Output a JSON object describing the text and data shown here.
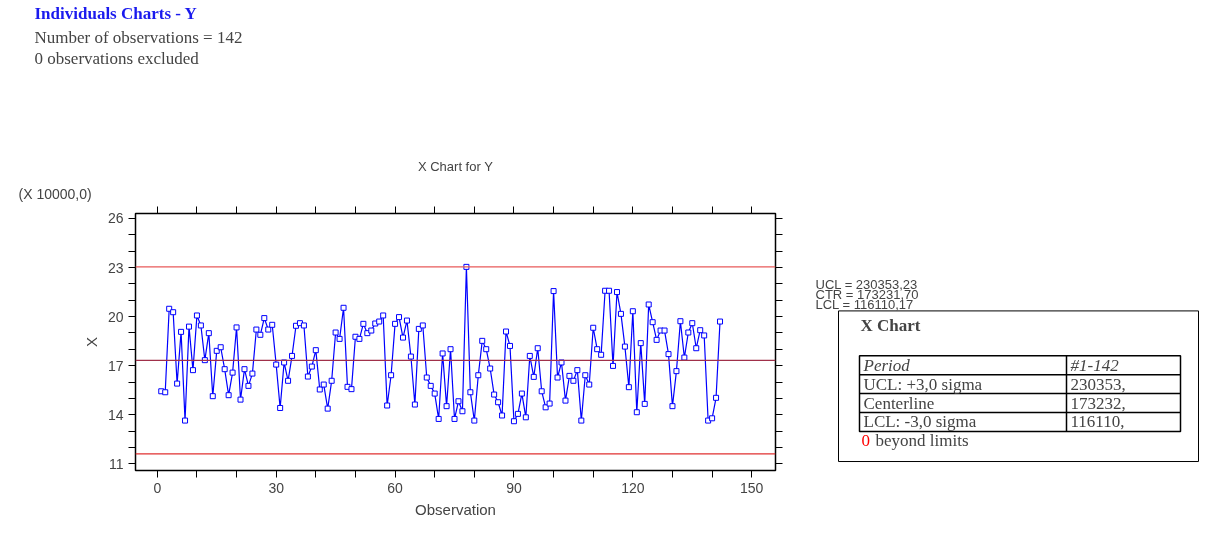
{
  "chart_data": [
    {
      "type": "other",
      "title": "Individuals Charts - Y",
      "annotations": [
        "Number of observations = 142",
        "0 observations excluded"
      ]
    },
    {
      "type": "line",
      "title": "X Chart for Y",
      "xlabel": "Observation",
      "ylabel": "X",
      "annotations": [
        "(X 10000,0)",
        "UCL = 230353,23",
        "CTR = 173231,70",
        "LCL = 116110,17"
      ],
      "x": [
        1,
        2,
        3,
        4,
        5,
        6,
        7,
        8,
        9,
        10,
        11,
        12,
        13,
        14,
        15,
        16,
        17,
        18,
        19,
        20,
        21,
        22,
        23,
        24,
        25,
        26,
        27,
        28,
        29,
        30,
        31,
        32,
        33,
        34,
        35,
        36,
        37,
        38,
        39,
        40,
        41,
        42,
        43,
        44,
        45,
        46,
        47,
        48,
        49,
        50,
        51,
        52,
        53,
        54,
        55,
        56,
        57,
        58,
        59,
        60,
        61,
        62,
        63,
        64,
        65,
        66,
        67,
        68,
        69,
        70,
        71,
        72,
        73,
        74,
        75,
        76,
        77,
        78,
        79,
        80,
        81,
        82,
        83,
        84,
        85,
        86,
        87,
        88,
        89,
        90,
        91,
        92,
        93,
        94,
        95,
        96,
        97,
        98,
        99,
        100,
        101,
        102,
        103,
        104,
        105,
        106,
        107,
        108,
        109,
        110,
        111,
        112,
        113,
        114,
        115,
        116,
        117,
        118,
        119,
        120,
        121,
        122,
        123,
        124,
        125,
        126,
        127,
        128,
        129,
        130,
        131,
        132,
        133,
        134,
        135,
        136,
        137,
        138,
        139,
        140,
        141,
        142
      ],
      "series": [
        {
          "color": "#0000ff",
          "values": [
            15.44,
            15.38,
            20.48,
            20.27,
            15.91,
            19.07,
            13.65,
            19.39,
            16.73,
            20.07,
            19.46,
            17.34,
            18.99,
            15.14,
            17.91,
            18.13,
            16.79,
            15.2,
            16.58,
            19.34,
            14.93,
            16.79,
            15.77,
            16.52,
            19.21,
            18.89,
            19.91,
            19.21,
            19.5,
            17.07,
            14.42,
            17.2,
            16.08,
            17.6,
            19.44,
            19.6,
            19.46,
            16.34,
            16.95,
            17.95,
            15.55,
            15.85,
            14.38,
            16.08,
            19.03,
            18.64,
            20.54,
            15.71,
            15.57,
            18.77,
            18.64,
            19.56,
            18.99,
            19.15,
            19.58,
            19.7,
            20.07,
            14.57,
            16.42,
            19.56,
            19.97,
            18.72,
            19.76,
            17.56,
            14.63,
            19.25,
            19.46,
            16.28,
            15.77,
            15.3,
            13.75,
            17.75,
            14.53,
            18.01,
            13.75,
            14.83,
            14.22,
            23.04,
            15.38,
            13.65,
            16.42,
            18.52,
            18.01,
            16.83,
            15.24,
            14.77,
            13.96,
            19.09,
            18.21,
            13.61,
            14.06,
            15.3,
            13.85,
            17.6,
            16.32,
            18.07,
            15.44,
            14.46,
            14.69,
            21.56,
            16.28,
            17.2,
            14.87,
            16.38,
            16.08,
            16.73,
            13.65,
            16.42,
            15.85,
            19.32,
            18.01,
            17.67,
            21.58,
            21.58,
            16.99,
            21.5,
            20.17,
            18.17,
            15.69,
            20.33,
            14.16,
            18.38,
            14.67,
            20.74,
            19.66,
            18.58,
            19.15,
            19.15,
            17.71,
            14.53,
            16.67,
            19.72,
            17.5,
            19.03,
            19.6,
            18.07,
            19.17,
            18.85,
            13.65,
            13.79,
            15.04,
            19.7
          ]
        }
      ],
      "marker": "square",
      "line_style": "solid",
      "grid": false,
      "xlim": [
        -5.5,
        156
      ],
      "ylim": [
        10.6,
        26.3
      ],
      "xticks": [
        0,
        {
          "value": 10,
          "label": null
        },
        {
          "value": 20,
          "label": null
        },
        30,
        {
          "value": 40,
          "label": null
        },
        {
          "value": 50,
          "label": null
        },
        60,
        {
          "value": 70,
          "label": null
        },
        {
          "value": 80,
          "label": null
        },
        90,
        {
          "value": 100,
          "label": null
        },
        {
          "value": 110,
          "label": null
        },
        120,
        {
          "value": 130,
          "label": null
        },
        {
          "value": 140,
          "label": null
        },
        150
      ],
      "yticks": [
        11,
        {
          "value": 12,
          "label": null
        },
        {
          "value": 13,
          "label": null
        },
        14,
        {
          "value": 15,
          "label": null
        },
        {
          "value": 16,
          "label": null
        },
        17,
        {
          "value": 18,
          "label": null
        },
        {
          "value": 19,
          "label": null
        },
        20,
        {
          "value": 21,
          "label": null
        },
        {
          "value": 22,
          "label": null
        },
        23,
        {
          "value": 24,
          "label": null
        },
        {
          "value": 25,
          "label": null
        },
        26
      ],
      "ref_lines": [
        {
          "axis": "y",
          "value": 23.035323,
          "color": "#e85a5a"
        },
        {
          "axis": "y",
          "value": 17.32317,
          "color": "#a0304a"
        },
        {
          "axis": "y",
          "value": 11.611017,
          "color": "#e03030"
        }
      ]
    },
    {
      "type": "other",
      "title": "X Chart",
      "annotations": [
        "Period",
        "#1-142",
        "UCL: +3,0 sigma",
        "230353,",
        "Centerline",
        "173232,",
        "LCL: -3,0 sigma",
        "116110,",
        "0 beyond limits"
      ]
    }
  ]
}
